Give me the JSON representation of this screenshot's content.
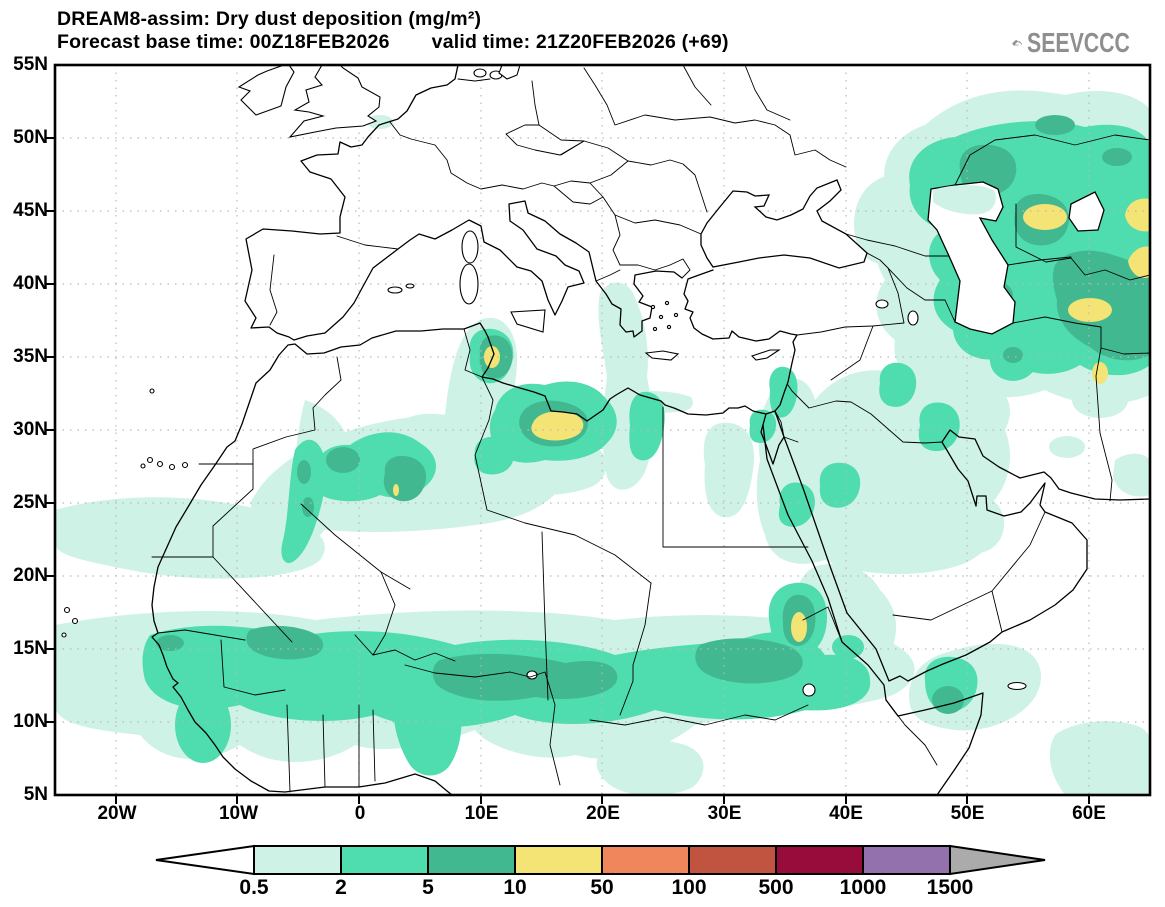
{
  "header": {
    "title": "DREAM8-assim: Dry dust deposition (mg/m²)",
    "forecast_base": "Forecast base time: 00Z18FEB2026",
    "valid_time": "valid time: 21Z20FEB2026 (+69)"
  },
  "logo": {
    "text": "SEEVCCC",
    "color": "#8f8f8f"
  },
  "axes": {
    "lat_labels": [
      "55N",
      "50N",
      "45N",
      "40N",
      "35N",
      "30N",
      "25N",
      "20N",
      "15N",
      "10N",
      "5N"
    ],
    "lon_labels": [
      "20W",
      "10W",
      "0",
      "10E",
      "20E",
      "30E",
      "40E",
      "50E",
      "60E"
    ]
  },
  "colorbar": {
    "labels": [
      "0.5",
      "2",
      "5",
      "10",
      "50",
      "100",
      "500",
      "1000",
      "1500"
    ],
    "colors": [
      "#cff2e6",
      "#4fdcae",
      "#42b890",
      "#f4e375",
      "#f0875c",
      "#c05440",
      "#970c3a",
      "#9271ac"
    ],
    "below_color": "#ffffff",
    "above_color": "#ababab"
  },
  "chart_data": {
    "type": "heatmap",
    "title": "DREAM8-assim: Dry dust deposition (mg/m²)",
    "units": "mg/m²",
    "contour_levels": [
      0.5,
      2,
      5,
      10,
      50,
      100,
      500,
      1000,
      1500
    ],
    "palette": [
      "#cff2e6",
      "#4fdcae",
      "#42b890",
      "#f4e375",
      "#f0875c",
      "#c05440",
      "#970c3a",
      "#9271ac"
    ],
    "lat_axis": [
      "55N",
      "50N",
      "45N",
      "40N",
      "35N",
      "30N",
      "25N",
      "20N",
      "15N",
      "10N",
      "5N"
    ],
    "lon_axis": [
      "20W",
      "10W",
      "0",
      "10E",
      "20E",
      "30E",
      "40E",
      "50E",
      "60E"
    ],
    "legend_position": "bottom"
  }
}
